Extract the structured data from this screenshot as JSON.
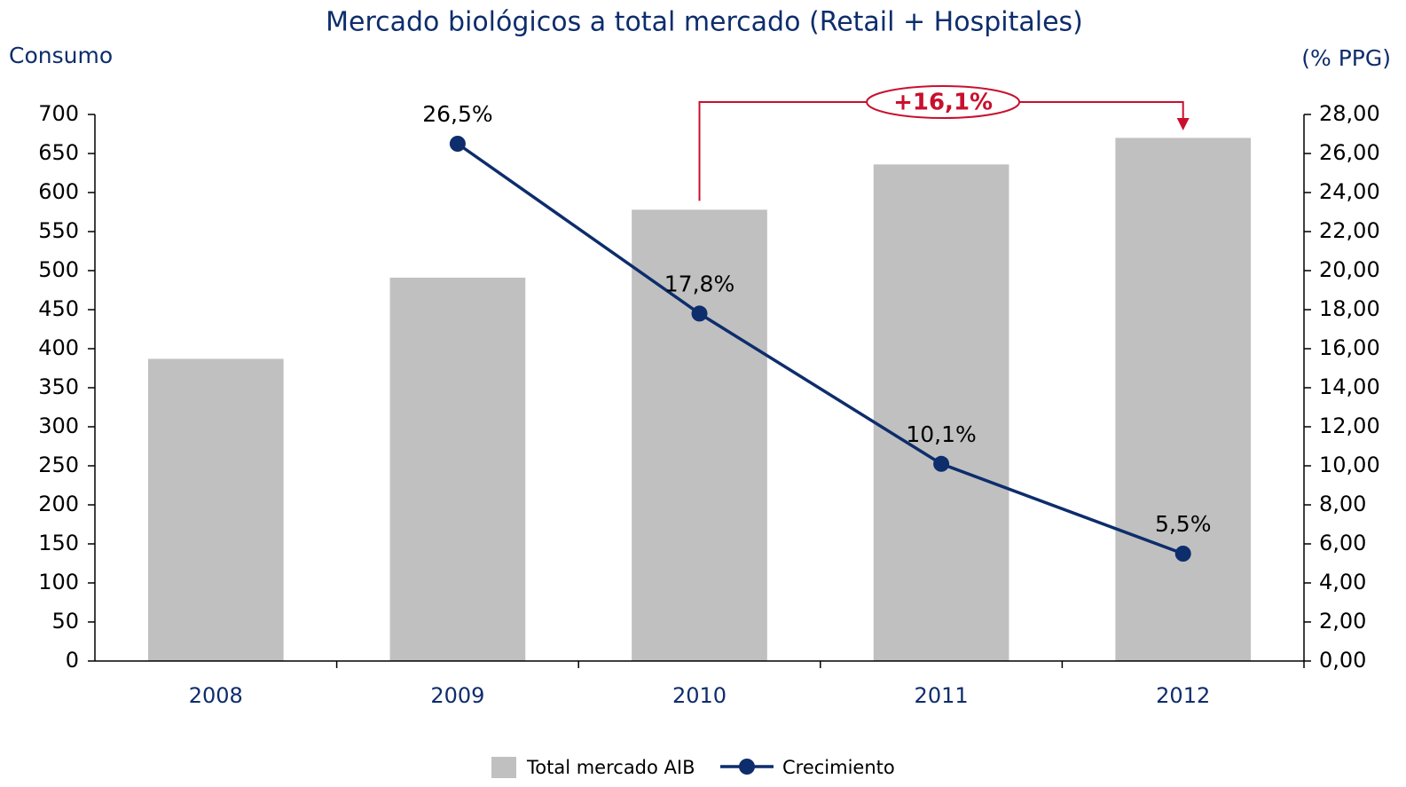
{
  "chart_data": {
    "type": "bar+line",
    "title": "Mercado biológicos a total mercado (Retail + Hospitales)",
    "y_label": "Consumo",
    "y2_label": "(% PPG)",
    "categories": [
      "2008",
      "2009",
      "2010",
      "2011",
      "2012"
    ],
    "series": [
      {
        "name": "Total mercado AIB",
        "type": "bar",
        "color": "#c0c0c0",
        "values": [
          387,
          491,
          578,
          636,
          670
        ]
      },
      {
        "name": "Crecimiento",
        "type": "line",
        "axis": "y2",
        "color": "#0d2d6c",
        "values": [
          null,
          26.5,
          17.8,
          10.1,
          5.5
        ],
        "value_labels": [
          null,
          "26,5%",
          "17,8%",
          "10,1%",
          "5,5%"
        ]
      }
    ],
    "ylim": [
      0,
      700
    ],
    "yticks": [
      0,
      50,
      100,
      150,
      200,
      250,
      300,
      350,
      400,
      450,
      500,
      550,
      600,
      650,
      700
    ],
    "y2lim": [
      0,
      28
    ],
    "y2ticks": [
      {
        "value": 0,
        "label": "0,00"
      },
      {
        "value": 2,
        "label": "2,00"
      },
      {
        "value": 4,
        "label": "4,00"
      },
      {
        "value": 6,
        "label": "6,00"
      },
      {
        "value": 8,
        "label": "8,00"
      },
      {
        "value": 10,
        "label": "10,00"
      },
      {
        "value": 12,
        "label": "12,00"
      },
      {
        "value": 14,
        "label": "14,00"
      },
      {
        "value": 16,
        "label": "16,00"
      },
      {
        "value": 18,
        "label": "18,00"
      },
      {
        "value": 20,
        "label": "20,00"
      },
      {
        "value": 22,
        "label": "22,00"
      },
      {
        "value": 24,
        "label": "24,00"
      },
      {
        "value": 26,
        "label": "26,00"
      },
      {
        "value": 28,
        "label": "28,00"
      }
    ],
    "annotation": "+16,1%",
    "legend": "bottom"
  }
}
